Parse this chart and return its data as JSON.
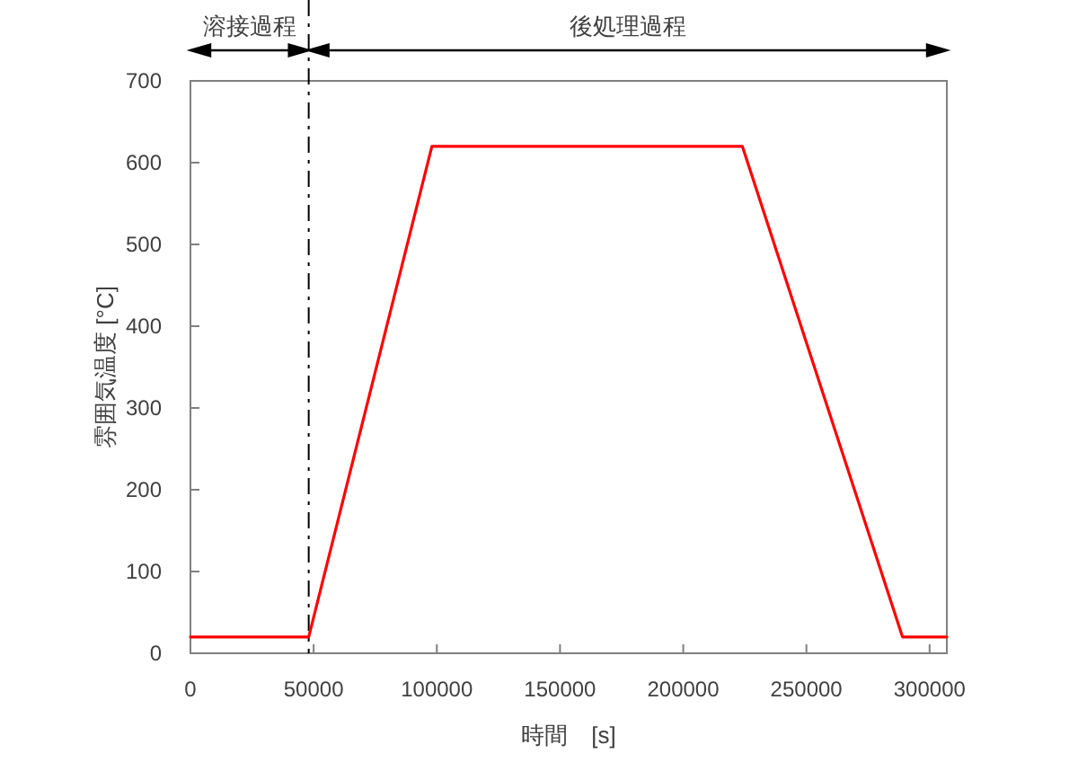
{
  "chart_data": {
    "type": "line",
    "xlabel": "時間　[s]",
    "ylabel": "雰囲気温度 [°C]",
    "x": [
      0,
      48000,
      98000,
      224000,
      289000,
      307000
    ],
    "series": [
      {
        "color": "#ff0000",
        "values": [
          20,
          20,
          620,
          620,
          20,
          20
        ]
      }
    ],
    "xlim": [
      0,
      307000
    ],
    "xticks": [
      0,
      50000,
      100000,
      150000,
      200000,
      250000,
      300000
    ],
    "ylim": [
      0,
      700
    ],
    "yticks": [
      0,
      100,
      200,
      300,
      400,
      500,
      600,
      700
    ],
    "grid": false,
    "marker": "none",
    "line_style": "solid",
    "ref_lines": [
      {
        "axis": "x",
        "value": 48000,
        "color": "#000000",
        "line_style": "dashdot"
      }
    ],
    "annotations": [
      "溶接過程",
      "後処理過程"
    ]
  }
}
